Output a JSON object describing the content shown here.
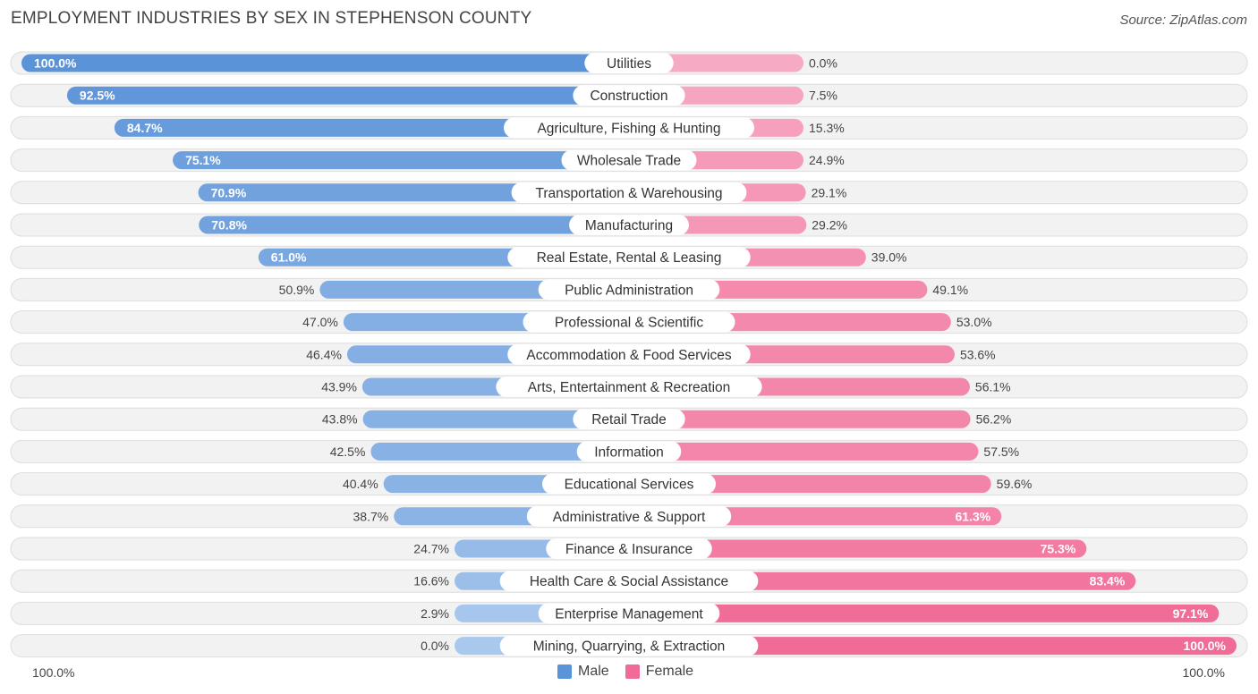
{
  "colors": {
    "male_strong": "#5b93d8",
    "male_light": "#a9c8ee",
    "female_strong": "#f06b96",
    "female_light": "#f7aac4",
    "row_bg": "#f2f2f2",
    "row_border": "#dddddd"
  },
  "chart_data": {
    "type": "bar",
    "orientation": "horizontal-diverging",
    "title": "EMPLOYMENT INDUSTRIES BY SEX IN STEPHENSON COUNTY",
    "source": "Source: ZipAtlas.com",
    "axis_left_label": "100.0%",
    "axis_right_label": "100.0%",
    "xlim": [
      0,
      100
    ],
    "legend": [
      {
        "name": "Male",
        "color": "#5b93d8"
      },
      {
        "name": "Female",
        "color": "#f06b96"
      }
    ],
    "categories": [
      "Utilities",
      "Construction",
      "Agriculture, Fishing & Hunting",
      "Wholesale Trade",
      "Transportation & Warehousing",
      "Manufacturing",
      "Real Estate, Rental & Leasing",
      "Public Administration",
      "Professional & Scientific",
      "Accommodation & Food Services",
      "Arts, Entertainment & Recreation",
      "Retail Trade",
      "Information",
      "Educational Services",
      "Administrative & Support",
      "Finance & Insurance",
      "Health Care & Social Assistance",
      "Enterprise Management",
      "Mining, Quarrying, & Extraction"
    ],
    "series": [
      {
        "name": "Male",
        "values": [
          100.0,
          92.5,
          84.7,
          75.1,
          70.9,
          70.8,
          61.0,
          50.9,
          47.0,
          46.4,
          43.9,
          43.8,
          42.5,
          40.4,
          38.7,
          24.7,
          16.6,
          2.9,
          0.0
        ],
        "labels": [
          "100.0%",
          "92.5%",
          "84.7%",
          "75.1%",
          "70.9%",
          "70.8%",
          "61.0%",
          "50.9%",
          "47.0%",
          "46.4%",
          "43.9%",
          "43.8%",
          "42.5%",
          "40.4%",
          "38.7%",
          "24.7%",
          "16.6%",
          "2.9%",
          "0.0%"
        ]
      },
      {
        "name": "Female",
        "values": [
          0.0,
          7.5,
          15.3,
          24.9,
          29.1,
          29.2,
          39.0,
          49.1,
          53.0,
          53.6,
          56.1,
          56.2,
          57.5,
          59.6,
          61.3,
          75.3,
          83.4,
          97.1,
          100.0
        ],
        "labels": [
          "0.0%",
          "7.5%",
          "15.3%",
          "24.9%",
          "29.1%",
          "29.2%",
          "39.0%",
          "49.1%",
          "53.0%",
          "53.6%",
          "56.1%",
          "56.2%",
          "57.5%",
          "59.6%",
          "61.3%",
          "75.3%",
          "83.4%",
          "97.1%",
          "100.0%"
        ]
      }
    ]
  }
}
